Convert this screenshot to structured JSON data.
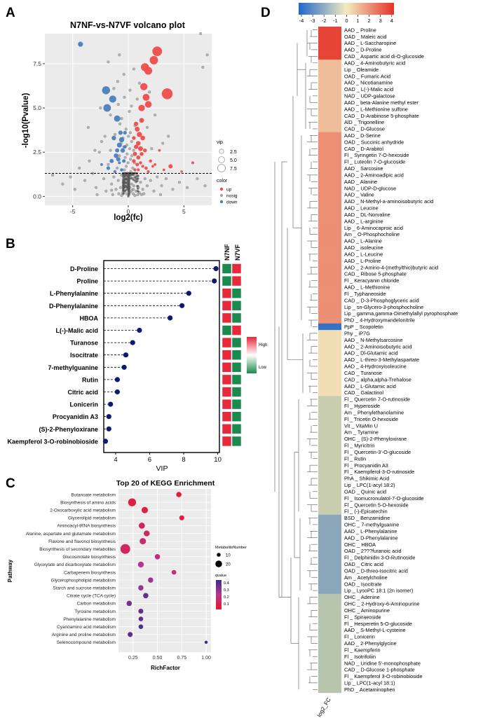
{
  "panel_letters": {
    "a": "A",
    "b": "B",
    "c": "C",
    "d": "D"
  },
  "colors": {
    "up": "#ee4c4a",
    "down": "#4a7fbe",
    "nosig": "#a3a3a3",
    "heat_low": "#2166c9",
    "heat_mid": "#f2ecc0",
    "heat_high": "#e63129",
    "vip_dot": "#0d1a70",
    "sq_high": "#e8283b",
    "sq_low": "#1c8a4e"
  },
  "chart_data": [
    {
      "type": "scatter",
      "title": "N7NF-vs-N7VF volcano plot",
      "xlabel": "log2(fc)",
      "ylabel": "-log10(Pvalue)",
      "xlim": [
        -7.5,
        7.5
      ],
      "ylim": [
        -0.5,
        9.2
      ],
      "xticks": [
        "-5",
        "0",
        "5"
      ],
      "yticks": [
        "0.0",
        "2.5",
        "5.0",
        "7.5"
      ],
      "threshold_y": 1.3,
      "legend_vip_title": "vip",
      "legend_vip_values": [
        "2.5",
        "5.0",
        "7.5"
      ],
      "legend_color_title": "color",
      "legend_color_labels": [
        "up",
        "nosig",
        "down"
      ],
      "up_points": [
        [
          2.6,
          8.2,
          8.4
        ],
        [
          3.5,
          5.8,
          9.4
        ],
        [
          1.5,
          7.3,
          7
        ],
        [
          1.8,
          7.1,
          6.8
        ],
        [
          2.3,
          7.7,
          7.3
        ],
        [
          1.4,
          6.2,
          6.3
        ],
        [
          1.6,
          5.6,
          6
        ],
        [
          1.8,
          5.2,
          5.8
        ],
        [
          1.2,
          5,
          5.6
        ],
        [
          0.8,
          3.8,
          4.3
        ],
        [
          1,
          3.5,
          4.5
        ],
        [
          1.3,
          3.3,
          4.1
        ],
        [
          0.9,
          3,
          4
        ],
        [
          0.7,
          2.8,
          3.8
        ],
        [
          1.1,
          2.7,
          4.2
        ],
        [
          0.6,
          2.4,
          3.6
        ],
        [
          0.9,
          2.2,
          3.5
        ],
        [
          1.2,
          2.4,
          3.4
        ],
        [
          1.5,
          2.6,
          3.3
        ],
        [
          0.5,
          2,
          3.2
        ],
        [
          0.8,
          1.8,
          3
        ],
        [
          1.1,
          1.9,
          2.8
        ],
        [
          1.6,
          1.6,
          2.8
        ],
        [
          2,
          2,
          2.7
        ],
        [
          0.6,
          1.5,
          2.6
        ],
        [
          0.9,
          1.5,
          2.5
        ],
        [
          1.3,
          1.7,
          2.5
        ],
        [
          1.8,
          1.4,
          2.4
        ],
        [
          2.2,
          1.7,
          2.3
        ],
        [
          3.8,
          1.7,
          3.7
        ],
        [
          3.2,
          1.5,
          2.2
        ],
        [
          4.8,
          1.4,
          2.1
        ],
        [
          5.8,
          1.9,
          2.4
        ],
        [
          2.8,
          2.6,
          2.3
        ],
        [
          1.2,
          4.3,
          4.2
        ],
        [
          0.7,
          4.1,
          3.8
        ],
        [
          0.5,
          3.3,
          3.2
        ],
        [
          2.4,
          1.8,
          2.3
        ]
      ],
      "down_points": [
        [
          -4.3,
          8.6,
          4.4
        ],
        [
          -2,
          6,
          7
        ],
        [
          -1.9,
          5,
          6.6
        ],
        [
          -1.4,
          5.5,
          6.2
        ],
        [
          -1,
          4.4,
          5.5
        ],
        [
          -0.6,
          3.2,
          4.5
        ],
        [
          -0.8,
          2.9,
          4.3
        ],
        [
          -0.5,
          2.6,
          3.9
        ],
        [
          -1.1,
          2.3,
          4
        ],
        [
          -1.5,
          2,
          3.6
        ],
        [
          -0.9,
          2.1,
          3.7
        ],
        [
          -0.4,
          2,
          3.1
        ],
        [
          -1.8,
          1.6,
          3.2
        ],
        [
          -0.6,
          1.5,
          2.8
        ],
        [
          -1.2,
          1.4,
          2.6
        ],
        [
          -0.7,
          3.6,
          3.8
        ],
        [
          -1.3,
          3.3,
          3.9
        ],
        [
          -1,
          2.6,
          3.6
        ],
        [
          -0.3,
          2.8,
          3
        ],
        [
          -0.3,
          3.6,
          3.2
        ],
        [
          -2.4,
          1.8,
          2.4
        ],
        [
          -0.8,
          1.9,
          2.5
        ]
      ],
      "nosig_points": [
        [
          -6.8,
          1.2
        ],
        [
          -5.9,
          0.7
        ],
        [
          -5.2,
          1.1
        ],
        [
          -4.8,
          0.4
        ],
        [
          -4.4,
          1.6
        ],
        [
          -3.9,
          0.9
        ],
        [
          -3.5,
          2
        ],
        [
          -3.2,
          1.3
        ],
        [
          -2.9,
          0.5
        ],
        [
          -2.6,
          2.5
        ],
        [
          -2.4,
          3.1
        ],
        [
          -2.2,
          1
        ],
        [
          -2,
          0.3
        ],
        [
          -1.8,
          1.8
        ],
        [
          -1.6,
          2.6
        ],
        [
          -1.5,
          0.7
        ],
        [
          -1.3,
          1.1
        ],
        [
          -1.2,
          3.5
        ],
        [
          -1.1,
          0.4
        ],
        [
          -1,
          1.6
        ],
        [
          -0.9,
          0.9
        ],
        [
          -0.8,
          2.3
        ],
        [
          -0.7,
          0.5
        ],
        [
          -0.6,
          1.2
        ],
        [
          -0.5,
          0.2
        ],
        [
          -0.4,
          0.8
        ],
        [
          -0.35,
          1.5
        ],
        [
          -0.3,
          0.3
        ],
        [
          -0.25,
          1
        ],
        [
          -0.2,
          0.6
        ],
        [
          -0.15,
          0.15
        ],
        [
          -0.1,
          1.3
        ],
        [
          -0.05,
          0.45
        ],
        [
          0,
          0.8
        ],
        [
          0.05,
          0.1
        ],
        [
          0.1,
          1.1
        ],
        [
          0.15,
          0.5
        ],
        [
          0.2,
          0.25
        ],
        [
          0.25,
          1.2
        ],
        [
          0.3,
          0.7
        ],
        [
          0.35,
          0.35
        ],
        [
          0.4,
          1
        ],
        [
          0.45,
          0.15
        ],
        [
          0.5,
          0.6
        ],
        [
          0.6,
          1.1
        ],
        [
          0.7,
          0.3
        ],
        [
          0.8,
          0.9
        ],
        [
          0.9,
          0.5
        ],
        [
          1,
          0.2
        ],
        [
          1.1,
          0.8
        ],
        [
          1.3,
          0.4
        ],
        [
          1.5,
          1
        ],
        [
          1.7,
          0.6
        ],
        [
          2,
          0.9
        ],
        [
          2.3,
          0.3
        ],
        [
          2.6,
          1.1
        ],
        [
          3,
          0.6
        ],
        [
          3.4,
          1
        ],
        [
          4,
          0.4
        ],
        [
          4.6,
          0.8
        ],
        [
          5.3,
          0.5
        ],
        [
          6.2,
          1
        ],
        [
          6.9,
          0.6
        ],
        [
          7.1,
          8
        ],
        [
          6.5,
          9.2
        ],
        [
          6.7,
          7.3
        ],
        [
          0.2,
          2.1
        ],
        [
          -0.1,
          2.4
        ],
        [
          0.4,
          1.6
        ],
        [
          -0.4,
          2.8
        ],
        [
          0.3,
          3.1
        ],
        [
          -0.2,
          3.8
        ],
        [
          0.6,
          4
        ],
        [
          -0.6,
          4.4
        ],
        [
          0.1,
          4.8
        ],
        [
          -0.9,
          5.2
        ],
        [
          0.8,
          5.5
        ],
        [
          -1.3,
          6.1
        ],
        [
          1,
          6.4
        ],
        [
          -0.4,
          6.9
        ],
        [
          0.5,
          7.2
        ],
        [
          -1.8,
          7.6
        ],
        [
          -0.8,
          8
        ],
        [
          1.2,
          0.1
        ],
        [
          -1.4,
          0.1
        ],
        [
          0.6,
          0.05
        ],
        [
          -0.6,
          0.05
        ],
        [
          -2.8,
          0.1
        ],
        [
          2.9,
          0.1
        ],
        [
          -0.02,
          1.9
        ],
        [
          0.12,
          2.7
        ],
        [
          -0.18,
          1.7
        ],
        [
          0.22,
          1.4
        ],
        [
          -0.28,
          2.2
        ],
        [
          0.32,
          2.3
        ],
        [
          0.02,
          3.4
        ],
        [
          -0.12,
          2.9
        ],
        [
          0.18,
          3.6
        ],
        [
          -0.48,
          3.3
        ],
        [
          0.48,
          2.6
        ],
        [
          -0.65,
          3
        ],
        [
          0.55,
          1.9
        ],
        [
          -0.75,
          4.1
        ],
        [
          0.28,
          5.1
        ],
        [
          -0.35,
          5.6
        ],
        [
          0.15,
          6
        ],
        [
          -1.6,
          4.6
        ],
        [
          1.7,
          3.9
        ],
        [
          -2.1,
          3.4
        ],
        [
          2.1,
          2.7
        ],
        [
          -3,
          2.6
        ],
        [
          3.1,
          3
        ],
        [
          -0.95,
          6.5
        ],
        [
          1.9,
          5.9
        ],
        [
          -2.5,
          5
        ],
        [
          2.4,
          4.6
        ],
        [
          -3.6,
          3.9
        ],
        [
          3.6,
          3.4
        ],
        [
          -1.5,
          0.35
        ],
        [
          1.4,
          0.15
        ],
        [
          -0.85,
          0.15
        ],
        [
          0.85,
          0.1
        ],
        [
          -0.45,
          0.6
        ],
        [
          0.45,
          0.4
        ]
      ]
    },
    {
      "type": "scatter",
      "title": "",
      "xlabel": "VIP",
      "ylabel": "",
      "xlim": [
        3.3,
        10.1
      ],
      "xticks": [
        4,
        6,
        8,
        10
      ],
      "categories": [
        "D-Proline",
        "Proline",
        "L-Phenylalanine",
        "D-Phenylalanine",
        "HBOA",
        "L(-)-Malic acid",
        "Turanose",
        "Isocitrate",
        "7-methylguanine",
        "Rutin",
        "Citric acid",
        "Lonicerin",
        "Procyanidin A3",
        "(S)-2-Phenyloxirane",
        "Kaempferol 3-O-robinobioside"
      ],
      "vip": [
        9.9,
        9.8,
        8.3,
        7.9,
        7.2,
        5.4,
        5.0,
        4.6,
        4.5,
        4.1,
        4.1,
        3.7,
        3.6,
        3.6,
        3.4
      ],
      "column_headers": [
        "N7NF",
        "N7VF"
      ],
      "n7nf_level": [
        "low",
        "low",
        "high",
        "high",
        "high",
        "low",
        "high",
        "high",
        "high",
        "high",
        "high",
        "high",
        "high",
        "high",
        "high"
      ],
      "n7vf_level": [
        "high",
        "high",
        "low",
        "low",
        "low",
        "high",
        "low",
        "low",
        "low",
        "low",
        "low",
        "low",
        "low",
        "low",
        "low"
      ],
      "legend_high": "High",
      "legend_low": "Low"
    },
    {
      "type": "scatter",
      "title": "Top 20 of KEGG Enrichment",
      "xlabel": "RichFactor",
      "ylabel": "Pathway",
      "xlim": [
        0.1,
        1.05
      ],
      "xticks": [
        "0.25",
        "0.50",
        "0.75",
        "1.00"
      ],
      "pathways": [
        "Butanoate metabolism",
        "Biosynthesis of amino acids",
        "2-Oxocarboxylic acid metabolism",
        "Glycerolipid metabolism",
        "Aminoacyl-tRNA biosynthesis",
        "Alanine, aspartate and glutamate metabolism",
        "Flavone and flavonol biosynthesis",
        "Biosynthesis of secondary metabolites",
        "Glucosinolate biosynthesis",
        "Glyoxylate and dicarboxylate metabolism",
        "Carbapenem biosynthesis",
        "Glycerophospholipid metabolism",
        "Starch and sucrose metabolism",
        "Citrate cycle (TCA cycle)",
        "Carbon metabolism",
        "Tyrosine metabolism",
        "Phenylalanine metabolism",
        "Cyanoamino acid metabolism",
        "Arginine and proline metabolism",
        "Selenocompound metabolism"
      ],
      "richfactor": [
        0.72,
        0.24,
        0.37,
        0.75,
        0.34,
        0.39,
        0.35,
        0.17,
        0.5,
        0.33,
        0.67,
        0.43,
        0.33,
        0.38,
        0.21,
        0.33,
        0.33,
        0.33,
        0.22,
        1.0
      ],
      "metabolite_number": [
        6,
        18,
        10,
        5,
        9,
        8,
        10,
        30,
        6,
        8,
        4,
        6,
        6,
        6,
        6,
        5,
        4,
        4,
        5,
        1
      ],
      "qvalue": [
        0.08,
        0.1,
        0.11,
        0.08,
        0.15,
        0.16,
        0.19,
        0.16,
        0.22,
        0.26,
        0.2,
        0.3,
        0.32,
        0.4,
        0.37,
        0.41,
        0.41,
        0.43,
        0.42,
        0.46
      ],
      "legend_size_title": "MetaboliteNumber",
      "legend_size_values": [
        "10",
        "20"
      ],
      "legend_color_title": "qvalue",
      "legend_color_ticks": [
        "0.4",
        "0.3",
        "0.2",
        "0.1"
      ]
    },
    {
      "type": "heatmap",
      "title": "",
      "xlabel": "log2_FC",
      "colorbar_ticks": [
        "-4",
        "-3",
        "-2",
        "-1",
        "0",
        "1",
        "2",
        "3",
        "4"
      ],
      "rows": [
        "AAD _ Proline",
        "OAD _ Maleic acid",
        "AAD _ L-Saccharopine",
        "AAD _ D-Proline",
        "CAD _ Aspartic acid di-O-glucoside",
        "AAD _ 4-Aminobutyric acid",
        "Lip _ Oleamide",
        "OAD _ Fumaric Acid",
        "AAD _ Nicotianamine",
        "OAD _ L(-)-Malic acid",
        "NAD _ UDP-galactose",
        "AAD _ beta-Alanine methyl ester",
        "AAD _ L-Methionine sulfone",
        "CAD _ D-Arabinose 5-phosphate",
        "AlD _ Trigonelline",
        "CAD _ D-Glucose",
        "AAD _ D-Serine",
        "OAD _ Succinic anhydride",
        "CAD _ D-Arabitol",
        "Fl _ Syringetin 7-O-hexoside",
        "Fl _ Luteolin 7-O-glucoside",
        "AAD _ Sarcosine",
        "AAD _ 2-Aminoadipic acid",
        "AAD _ Alanine",
        "NAD _ UDP-D-glucose",
        "AAD _ Valine",
        "AAD _ N-Methyl-a-aminoisobutyric acid",
        "AAD _ Leucine",
        "AAD _ DL-Norvaline",
        "AAD _ L-arginine",
        "Lip _ 6-Aminocaproic acid",
        "Am _ O-Phosphocholine",
        "AAD _ L-Alanine",
        "AAD _ isoleucine",
        "AAD _ L-Leucine",
        "AAD _ L-Proline",
        "AAD _ 2-Amino-4-(methylthio)butyric acid",
        "CAD _ Ribose 5-phosphate",
        "Fl _ Keracyanin chloride",
        "AAD _ L-Methionine",
        "Fl _ Typhaneoside",
        "CAD _ D-3-Phosphoglyceric acid",
        "Lip _ sn-Glycero-3-phosphocholine",
        "Lip _ gamma,gamma-Dimethylallyl pyrophosphate",
        "PhD _ 4-Hydroxymandelonitrile",
        "PpP _ Scopoletin",
        "Phy _ iP7G",
        "AAD _ N-Methylsarcosine",
        "AAD _ 2-Aminoisobutyric acid",
        "AAD _ Dl-Glutamic acid",
        "AAD _ L-threo-3-Methylaspartate",
        "AAD _ 4-Hydroxyisoleucine",
        "CAD _ Turanose",
        "CAD _ alpha,alpha-Trehalose",
        "AAD _ L-Glutamic acid",
        "CAD _ Galactinol",
        "Fl _ Quercetin 7-O-rutinoside",
        "Fl _ Hyperoside",
        "Am _ Phenylethanolamine",
        "Fl _ Tricetin O-hexoside",
        "Vit _ VitaMin U",
        "Am _ Tyramine",
        "OHC _ (S)-2-Phenyloxirane",
        "Fl _ Myricitrin",
        "Fl _ Quercetin-3'-O-glucoside",
        "Fl _ Rutin",
        "Fl _ Procyanidin A3",
        "Fl _ Kaempferol-3-O-rutinoside",
        "PhA _ Shikimic Acid",
        "Lip _ LPC(1-acyl 18:2)",
        "OAD _ Quinic acid",
        "Fl _ Isomucronulatol-7-O-glucoside",
        "Fl _ Quercetin 5-O-hexoside",
        "Fl _ (-)-Epicatechin",
        "BSD _ Benzamidine",
        "OHC _ 7-methylguanine",
        "AAD _ L-Phenylalanine",
        "AAD _ D-Phenylalanine",
        "OHC _ HBOA",
        "OAD _ 2???furanoic acid",
        "Fl _ Delphinidin 3-O-Rutinoside",
        "OAD _ Citric acid",
        "OAD _ D-threo-Isocitric acid",
        "Am _ Acetylcholine",
        "OAD _ Isocitrate",
        "Lip _ LysoPC 18:1 (2n isomer)",
        "OHC _ Adenine",
        "OHC _ 2-Hydroxy-6-Aminopurine",
        "OHC _ Aminopurine",
        "Fl _ Spiraeoside",
        "Fl _ Hesperetin 5-O-glucoside",
        "AAD _ S-Methyl-L-cysteine",
        "Fl _ Lonicerin",
        "AAD _ 2-Phenylglycine",
        "Fl _ Kaempferin",
        "Fl _ Isotrifoliin",
        "NAD _ Uridine 5'-monophosphate",
        "CAD _ D-Glucose 1-phosphate",
        "Fl _ Kaempferol 3-O-robinobioside",
        "Lip _ LPC(1-acyl 18:1)",
        "PhD _ Acetaminophen"
      ],
      "values": [
        3.6,
        3.6,
        3.6,
        3.6,
        3.6,
        1.0,
        1.0,
        1.0,
        1.0,
        1.0,
        1.0,
        1.0,
        1.0,
        1.0,
        1.0,
        1.0,
        2.0,
        2.0,
        2.0,
        2.0,
        2.0,
        2.0,
        2.0,
        2.0,
        2.0,
        2.0,
        2.0,
        2.0,
        2.0,
        2.0,
        2.0,
        2.0,
        2.0,
        2.0,
        2.0,
        2.0,
        2.0,
        2.0,
        2.0,
        2.0,
        2.0,
        2.0,
        2.0,
        2.0,
        2.0,
        -3.6,
        0.3,
        0.3,
        0.3,
        0.3,
        0.3,
        0.3,
        0.3,
        0.3,
        0.3,
        0.3,
        -1.2,
        -1.2,
        -1.2,
        -1.2,
        -1.2,
        -1.2,
        -1.2,
        -1.2,
        -1.2,
        -1.2,
        -1.2,
        -1.2,
        -1.2,
        -1.2,
        -1.2,
        -1.2,
        -1.2,
        -1.2,
        -2.0,
        -2.0,
        -2.0,
        -2.0,
        -2.0,
        -2.0,
        -2.0,
        -2.0,
        -2.0,
        -2.0,
        -2.0,
        -2.0,
        -1.4,
        -1.4,
        -1.4,
        -1.4,
        -1.4,
        -1.4,
        -1.4,
        -1.4,
        -1.4,
        -1.4,
        -1.4,
        -1.4,
        -1.4,
        -1.4,
        -1.4
      ]
    }
  ]
}
